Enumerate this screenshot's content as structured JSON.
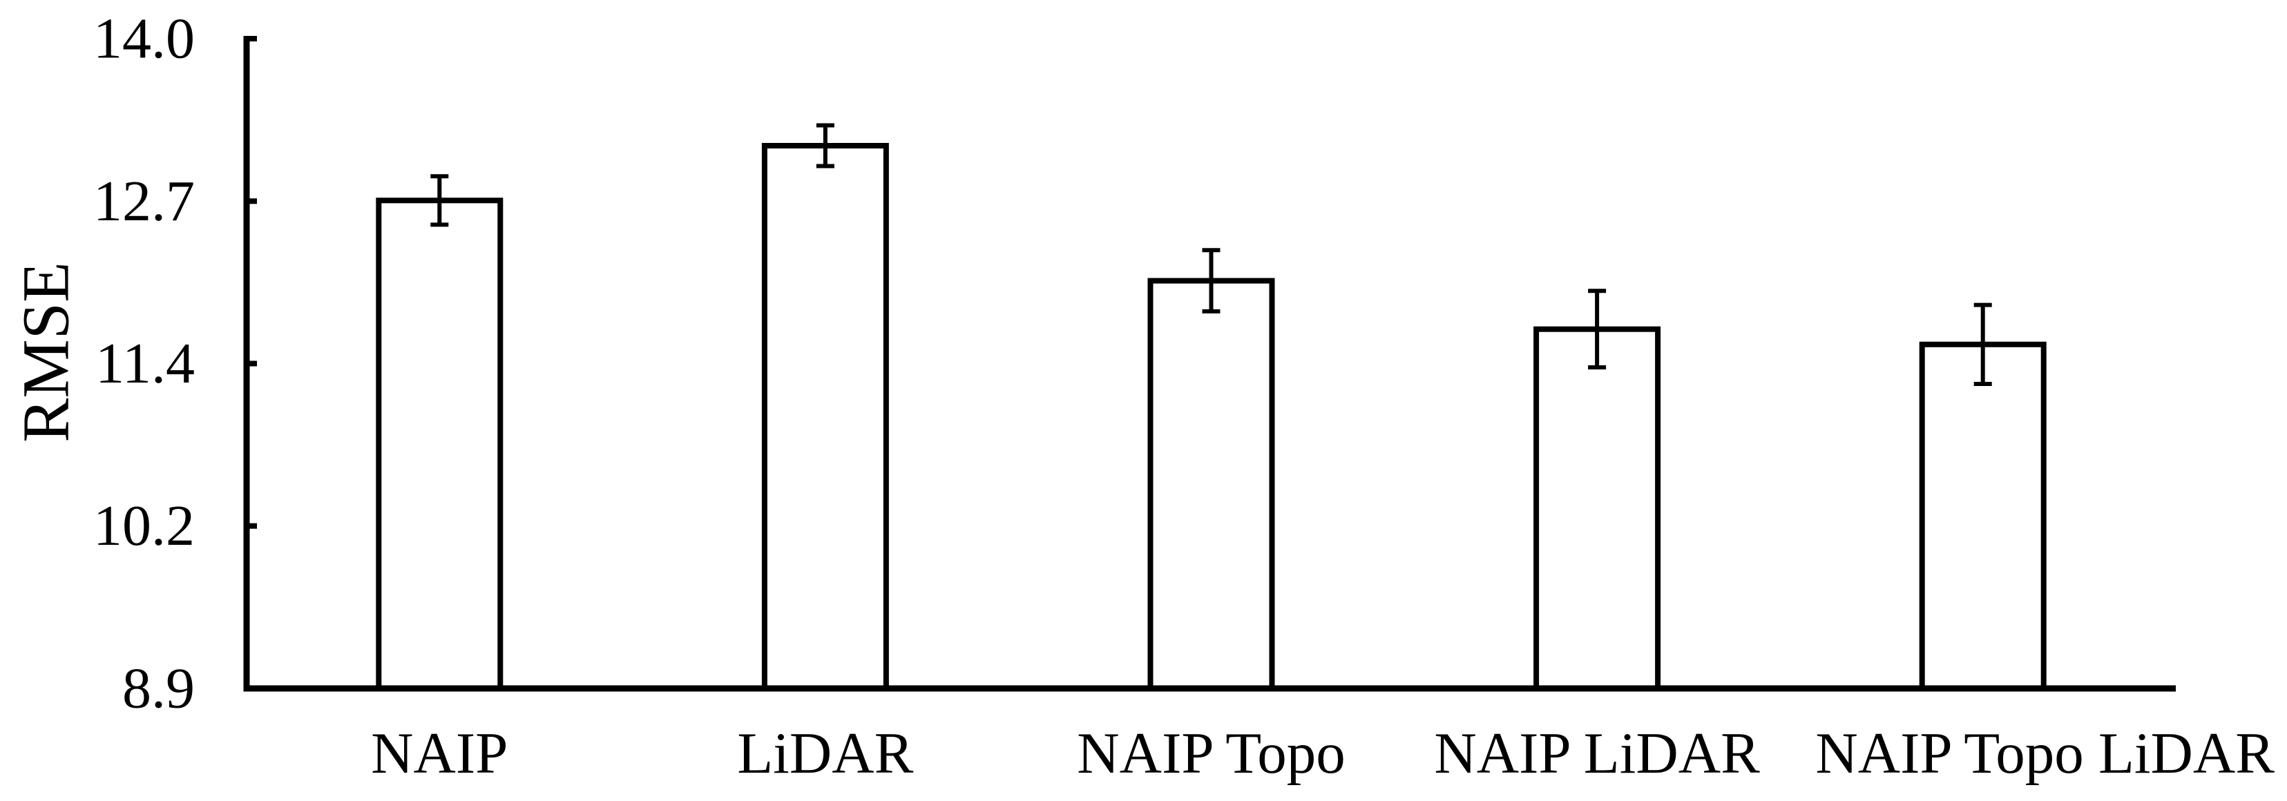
{
  "figure": {
    "background_color": "#ffffff",
    "ink_color": "#000000"
  },
  "chart_data": {
    "type": "bar",
    "title": "",
    "xlabel": "",
    "ylabel": "RMSE",
    "categories": [
      "NAIP",
      "LiDAR",
      "NAIP Topo",
      "NAIP LiDAR",
      "NAIP Topo LiDAR"
    ],
    "values": [
      12.73,
      13.16,
      12.1,
      11.72,
      11.6
    ],
    "error_bars": [
      0.19,
      0.16,
      0.24,
      0.3,
      0.31
    ],
    "ylim": [
      8.9,
      14.0
    ],
    "ytick_values": [
      8.9,
      10.175,
      11.45,
      12.725,
      14.0
    ],
    "ytick_labels": [
      "8.9",
      "10.2",
      "11.4",
      "12.7",
      "14.0"
    ],
    "grid": false,
    "legend": "none",
    "bar_fill": "#ffffff",
    "bar_stroke": "#000000",
    "axis_color": "#000000",
    "error_bar_color": "#000000",
    "text_color": "#000000"
  }
}
